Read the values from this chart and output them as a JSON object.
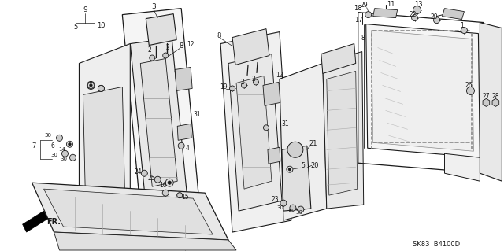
{
  "bg_color": "#ffffff",
  "line_color": "#1a1a1a",
  "diagram_code": "SK83  B4100D",
  "figsize": [
    6.4,
    3.19
  ],
  "dpi": 100
}
